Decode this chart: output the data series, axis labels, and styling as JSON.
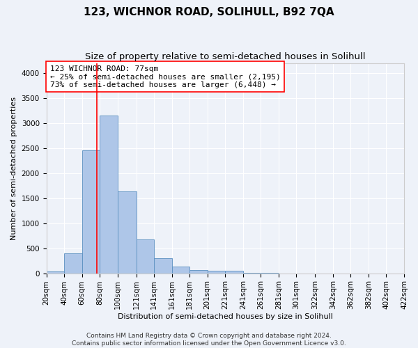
{
  "title": "123, WICHNOR ROAD, SOLIHULL, B92 7QA",
  "subtitle": "Size of property relative to semi-detached houses in Solihull",
  "xlabel": "Distribution of semi-detached houses by size in Solihull",
  "ylabel": "Number of semi-detached properties",
  "footer_line1": "Contains HM Land Registry data © Crown copyright and database right 2024.",
  "footer_line2": "Contains public sector information licensed under the Open Government Licence v3.0.",
  "annotation_title": "123 WICHNOR ROAD: 77sqm",
  "annotation_line1": "← 25% of semi-detached houses are smaller (2,195)",
  "annotation_line2": "73% of semi-detached houses are larger (6,448) →",
  "property_size": 77,
  "bin_edges": [
    20,
    40,
    60,
    80,
    100,
    121,
    141,
    161,
    181,
    201,
    221,
    241,
    261,
    281,
    301,
    322,
    342,
    362,
    382,
    402,
    422
  ],
  "bar_heights": [
    30,
    400,
    2450,
    3150,
    1630,
    680,
    300,
    140,
    70,
    50,
    50,
    10,
    10,
    0,
    0,
    0,
    0,
    0,
    0,
    0
  ],
  "bar_color": "#aec6e8",
  "bar_edge_color": "#5a8fc0",
  "vline_color": "#ff0000",
  "ylim": [
    0,
    4200
  ],
  "background_color": "#eef2f9",
  "grid_color": "#ffffff",
  "title_fontsize": 11,
  "subtitle_fontsize": 9.5,
  "axis_label_fontsize": 8,
  "tick_fontsize": 7.5,
  "annotation_fontsize": 8,
  "footer_fontsize": 6.5
}
